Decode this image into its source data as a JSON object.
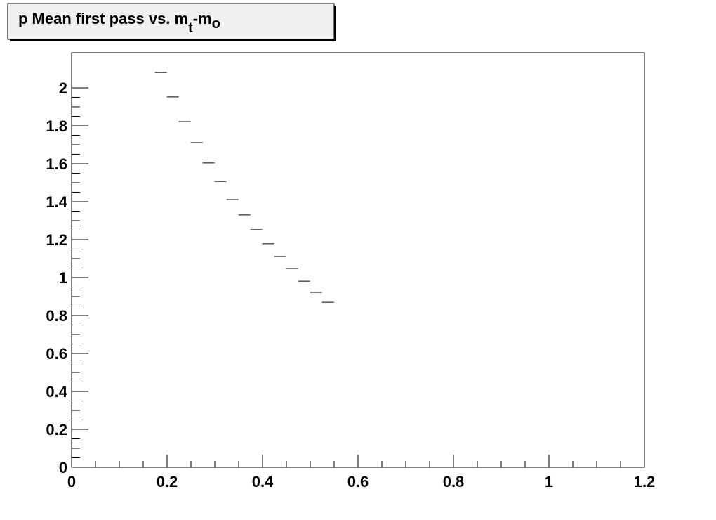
{
  "chart_data": {
    "type": "scatter",
    "title_parts": [
      "p Mean first pass vs. m",
      "t",
      "-m",
      "o"
    ],
    "x": [
      0.187,
      0.212,
      0.237,
      0.262,
      0.287,
      0.312,
      0.337,
      0.362,
      0.387,
      0.412,
      0.437,
      0.462,
      0.487,
      0.512,
      0.537
    ],
    "values": [
      2.081,
      1.952,
      1.822,
      1.711,
      1.604,
      1.507,
      1.411,
      1.33,
      1.252,
      1.178,
      1.111,
      1.048,
      0.981,
      0.922,
      0.87
    ],
    "xerr": 0.0125,
    "color": "#000000",
    "xlim": [
      0,
      1.2
    ],
    "ylim": [
      0,
      2.185
    ],
    "xticks": [
      0,
      0.2,
      0.4,
      0.6,
      0.8,
      1,
      1.2
    ],
    "yticks": [
      0,
      0.2,
      0.4,
      0.6,
      0.8,
      1,
      1.2,
      1.4,
      1.6,
      1.8,
      2
    ],
    "grid": false
  }
}
